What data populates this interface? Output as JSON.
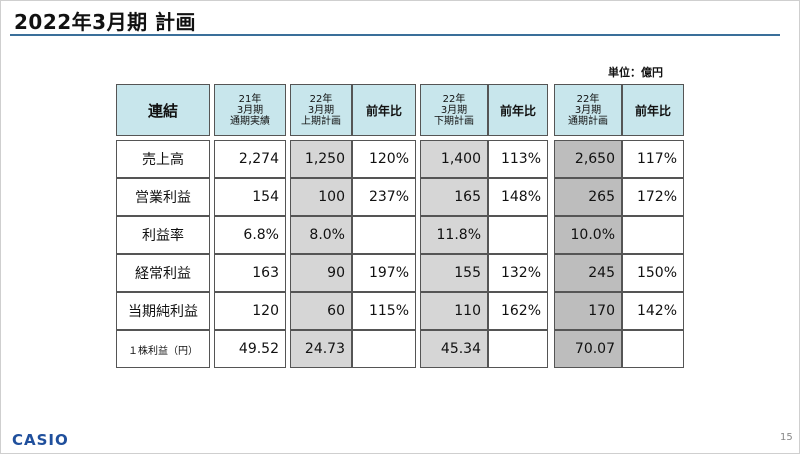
{
  "title": "2022年3月期 計画",
  "unit": "単位：億円",
  "brand": "CASIO",
  "page_number": "15",
  "headers": {
    "consolidated": "連結",
    "fy21_actual": "21年\n3月期\n通期実績",
    "fy22_h1_plan": "22年\n3月期\n上期計画",
    "yoy": "前年比",
    "fy22_h2_plan": "22年\n3月期\n下期計画",
    "fy22_full_plan": "22年\n3月期\n通期計画"
  },
  "rows": [
    {
      "label": "売上高",
      "fy21": "2,274",
      "h1": "1,250",
      "h1_yoy": "120%",
      "h2": "1,400",
      "h2_yoy": "113%",
      "full": "2,650",
      "full_yoy": "117%"
    },
    {
      "label": "営業利益",
      "fy21": "154",
      "h1": "100",
      "h1_yoy": "237%",
      "h2": "165",
      "h2_yoy": "148%",
      "full": "265",
      "full_yoy": "172%"
    },
    {
      "label": "利益率",
      "fy21": "6.8%",
      "h1": "8.0%",
      "h1_yoy": "",
      "h2": "11.8%",
      "h2_yoy": "",
      "full": "10.0%",
      "full_yoy": ""
    },
    {
      "label": "経常利益",
      "fy21": "163",
      "h1": "90",
      "h1_yoy": "197%",
      "h2": "155",
      "h2_yoy": "132%",
      "full": "245",
      "full_yoy": "150%"
    },
    {
      "label": "当期純利益",
      "fy21": "120",
      "h1": "60",
      "h1_yoy": "115%",
      "h2": "110",
      "h2_yoy": "162%",
      "full": "170",
      "full_yoy": "142%"
    },
    {
      "label": "１株利益（円）",
      "fy21": "49.52",
      "h1": "24.73",
      "h1_yoy": "",
      "h2": "45.34",
      "h2_yoy": "",
      "full": "70.07",
      "full_yoy": ""
    }
  ]
}
